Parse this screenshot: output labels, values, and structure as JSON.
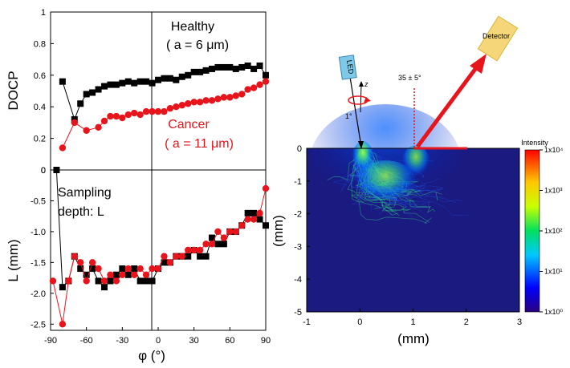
{
  "figure": {
    "colors": {
      "healthy": "#000000",
      "cancer": "#e8141c",
      "beam": "#e8141c",
      "led_box": "#7ec8e8",
      "detector_box": "#f5d77a",
      "background_field": "#1a1a80"
    },
    "cbar_title": "Intensity",
    "detector_label": "Detector",
    "led_label": "LED",
    "z_label": "z",
    "angle_label": "35 ± 5°",
    "tilt_label": "1°"
  },
  "chart_data": [
    {
      "id": "docp",
      "type": "line",
      "ylabel": "DOCP",
      "xlabel": "",
      "xlim": [
        -90,
        90
      ],
      "ylim": [
        0,
        1
      ],
      "yticks": [
        "0",
        "0.2",
        "0.4",
        "0.6",
        "0.8",
        "1"
      ],
      "annotations": {
        "healthy": [
          "Healthy",
          "( a = 6 μm)"
        ],
        "cancer": [
          "Cancer",
          "( a = 11 μm)"
        ]
      },
      "series": [
        {
          "name": "Healthy",
          "marker": "square",
          "x": [
            -80,
            -70,
            -65,
            -60,
            -55,
            -50,
            -45,
            -40,
            -35,
            -30,
            -25,
            -20,
            -15,
            -10,
            -5,
            0,
            5,
            10,
            15,
            20,
            25,
            30,
            35,
            40,
            45,
            50,
            55,
            60,
            65,
            70,
            75,
            80,
            85,
            90
          ],
          "values": [
            0.56,
            0.32,
            0.42,
            0.48,
            0.49,
            0.51,
            0.53,
            0.54,
            0.54,
            0.55,
            0.56,
            0.55,
            0.56,
            0.56,
            0.55,
            0.57,
            0.58,
            0.58,
            0.57,
            0.59,
            0.6,
            0.62,
            0.62,
            0.63,
            0.64,
            0.65,
            0.65,
            0.65,
            0.64,
            0.65,
            0.66,
            0.64,
            0.66,
            0.6
          ]
        },
        {
          "name": "Cancer",
          "marker": "circle",
          "x": [
            -80,
            -70,
            -60,
            -50,
            -45,
            -40,
            -35,
            -30,
            -25,
            -20,
            -15,
            -10,
            -5,
            0,
            5,
            10,
            15,
            20,
            25,
            30,
            35,
            40,
            45,
            50,
            55,
            60,
            65,
            70,
            75,
            80,
            85,
            90
          ],
          "values": [
            0.14,
            0.3,
            0.25,
            0.27,
            0.31,
            0.34,
            0.34,
            0.33,
            0.35,
            0.36,
            0.35,
            0.37,
            0.37,
            0.37,
            0.37,
            0.39,
            0.4,
            0.41,
            0.42,
            0.43,
            0.43,
            0.44,
            0.44,
            0.45,
            0.46,
            0.46,
            0.47,
            0.48,
            0.51,
            0.52,
            0.54,
            0.56
          ]
        }
      ]
    },
    {
      "id": "depth",
      "type": "line",
      "ylabel": "L (mm)",
      "xlabel": "φ (°)",
      "xlim": [
        -90,
        90
      ],
      "ylim": [
        -2.6,
        0
      ],
      "xticks": [
        "-90",
        "-60",
        "-30",
        "0",
        "30",
        "60",
        "90"
      ],
      "yticks": [
        "0",
        "-0.5",
        "-1.0",
        "-1.5",
        "-2.0",
        "-2.5"
      ],
      "annotations": {
        "sampling": [
          "Sampling",
          "depth: L"
        ]
      },
      "series": [
        {
          "name": "Healthy",
          "marker": "square",
          "x": [
            -85,
            -80,
            -75,
            -70,
            -65,
            -60,
            -55,
            -50,
            -45,
            -40,
            -35,
            -30,
            -25,
            -20,
            -15,
            -10,
            -5,
            0,
            5,
            10,
            15,
            20,
            25,
            30,
            35,
            40,
            45,
            50,
            55,
            60,
            65,
            70,
            75,
            80,
            85,
            90
          ],
          "values": [
            0,
            -1.9,
            -1.8,
            -1.4,
            -1.6,
            -1.7,
            -1.6,
            -1.8,
            -1.9,
            -1.8,
            -1.7,
            -1.6,
            -1.7,
            -1.6,
            -1.8,
            -1.8,
            -1.8,
            -1.6,
            -1.5,
            -1.5,
            -1.4,
            -1.4,
            -1.4,
            -1.3,
            -1.4,
            -1.4,
            -1.1,
            -1.2,
            -1.2,
            -1.0,
            -1.0,
            -0.9,
            -0.7,
            -0.7,
            -0.8,
            -0.9
          ]
        },
        {
          "name": "Cancer",
          "marker": "circle",
          "x": [
            -88,
            -80,
            -75,
            -70,
            -65,
            -60,
            -55,
            -50,
            -45,
            -40,
            -35,
            -30,
            -25,
            -20,
            -15,
            -10,
            -5,
            0,
            5,
            10,
            15,
            20,
            25,
            30,
            35,
            40,
            45,
            50,
            55,
            60,
            65,
            70,
            75,
            80,
            85,
            90
          ],
          "values": [
            -1.8,
            -2.5,
            -1.8,
            -1.4,
            -1.5,
            -1.8,
            -1.5,
            -1.6,
            -1.8,
            -1.7,
            -1.8,
            -1.7,
            -1.6,
            -1.7,
            -1.6,
            -1.7,
            -1.6,
            -1.6,
            -1.4,
            -1.5,
            -1.4,
            -1.4,
            -1.3,
            -1.3,
            -1.3,
            -1.2,
            -1.2,
            -1.0,
            -1.1,
            -1.0,
            -1.0,
            -0.9,
            -0.8,
            -0.8,
            -0.7,
            -0.3
          ]
        }
      ]
    },
    {
      "id": "intensity-map",
      "type": "heatmap",
      "xlabel": "(mm)",
      "ylabel": "(mm)",
      "xlim": [
        -1,
        3
      ],
      "ylim": [
        -5,
        0
      ],
      "xticks": [
        "-1",
        "0",
        "1",
        "2",
        "3"
      ],
      "yticks": [
        "0",
        "-1",
        "-2",
        "-3",
        "-4",
        "-5"
      ],
      "colorbar": {
        "title": "Intensity",
        "scale": "log",
        "range": [
          1,
          10000
        ],
        "ticks": [
          "1x10⁴",
          "1x10³",
          "1x10²",
          "1x10¹",
          "1x10⁰"
        ]
      }
    }
  ]
}
